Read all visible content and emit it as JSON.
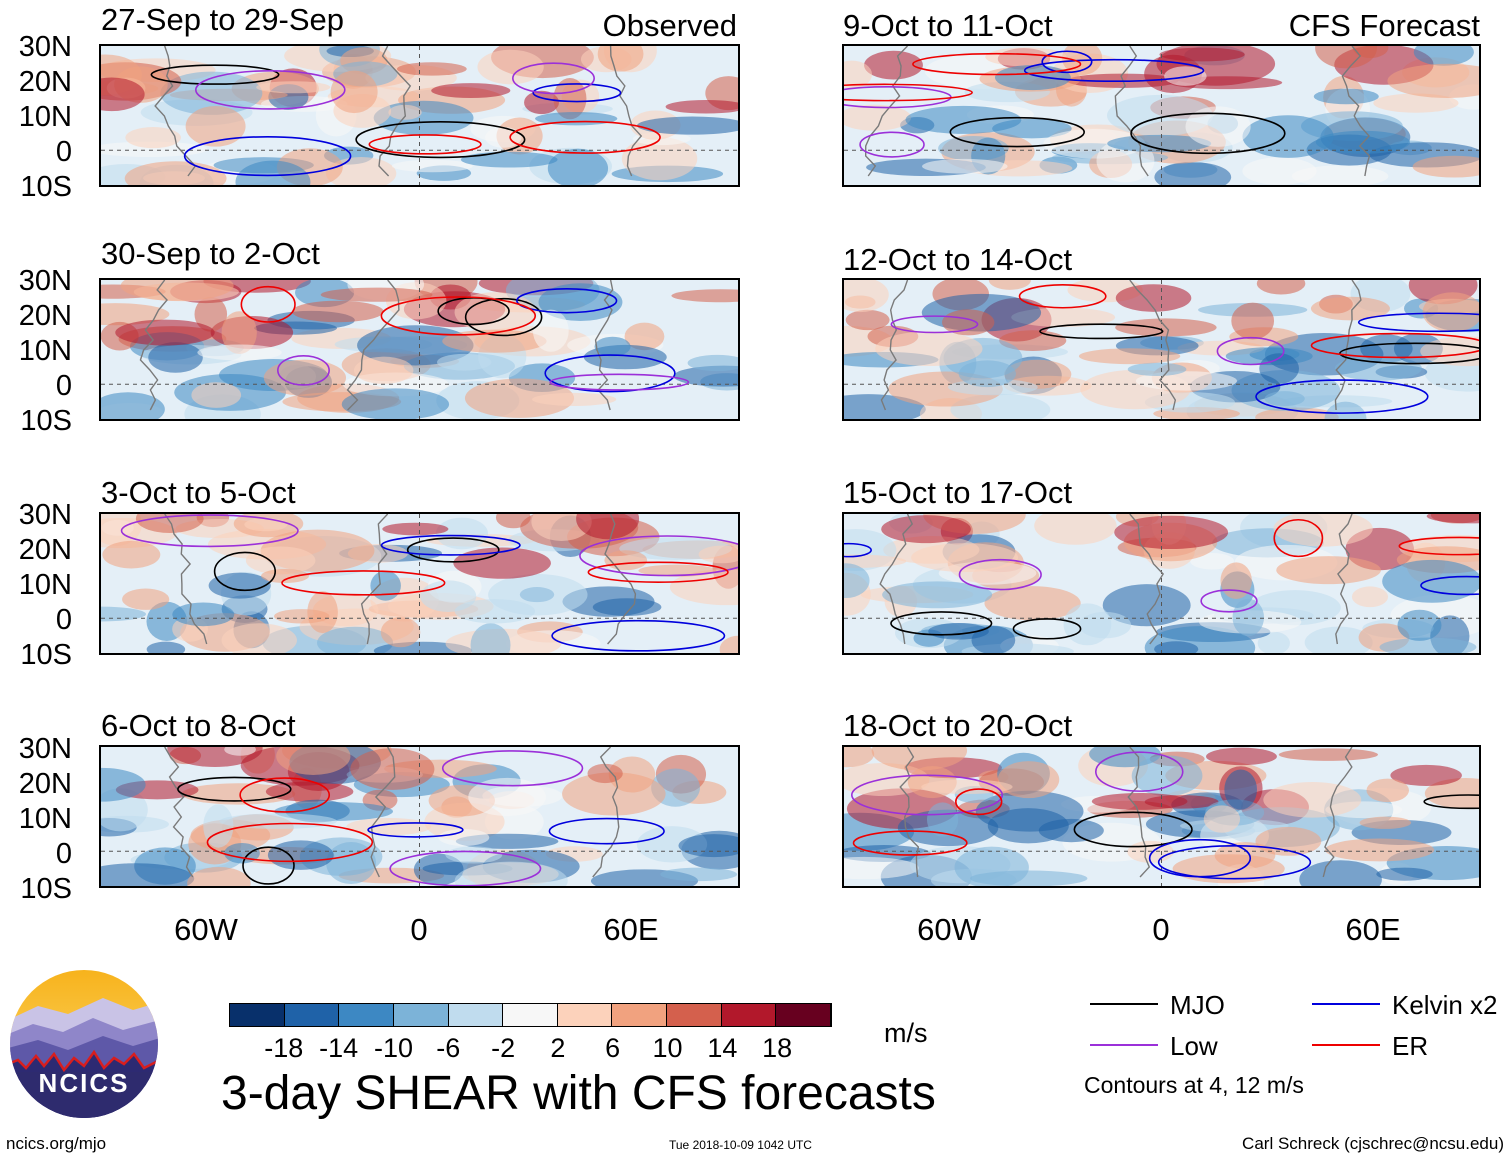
{
  "headers": {
    "left": "Observed",
    "right": "CFS Forecast"
  },
  "panels": [
    {
      "title": "27-Sep to 29-Sep",
      "column": "observed"
    },
    {
      "title": "30-Sep to 2-Oct",
      "column": "observed"
    },
    {
      "title": "3-Oct to 5-Oct",
      "column": "observed"
    },
    {
      "title": "6-Oct to 8-Oct",
      "column": "observed"
    },
    {
      "title": "9-Oct to 11-Oct",
      "column": "forecast"
    },
    {
      "title": "12-Oct to 14-Oct",
      "column": "forecast"
    },
    {
      "title": "15-Oct to 17-Oct",
      "column": "forecast"
    },
    {
      "title": "18-Oct to 20-Oct",
      "column": "forecast"
    }
  ],
  "lat_labels": [
    "30N",
    "20N",
    "10N",
    "0",
    "10S"
  ],
  "lon_labels": [
    "60W",
    "0",
    "60E"
  ],
  "colorbar": {
    "ticks": [
      "-18",
      "-14",
      "-10",
      "-6",
      "-2",
      "2",
      "6",
      "10",
      "14",
      "18"
    ],
    "unit": "m/s",
    "colors": [
      "#08306b",
      "#1f62a8",
      "#3d88c3",
      "#7cb3d8",
      "#c0dcee",
      "#f7f7f7",
      "#fcd2bb",
      "#f1a27f",
      "#d4604d",
      "#b2182b",
      "#67001f"
    ]
  },
  "main_title": "3-day SHEAR with CFS forecasts",
  "legend": {
    "items": [
      {
        "label": "MJO",
        "color": "#000000"
      },
      {
        "label": "Kelvin x2",
        "color": "#0000dd"
      },
      {
        "label": "Low",
        "color": "#9b30d9"
      },
      {
        "label": "ER",
        "color": "#ee0000"
      }
    ],
    "note": "Contours at 4, 12 m/s"
  },
  "logo_text": "NCICS",
  "footer": {
    "url": "ncics.org/mjo",
    "timestamp": "Tue 2018-10-09 1042 UTC",
    "credit": "Carl Schreck (cjschrec@ncsu.edu)"
  }
}
